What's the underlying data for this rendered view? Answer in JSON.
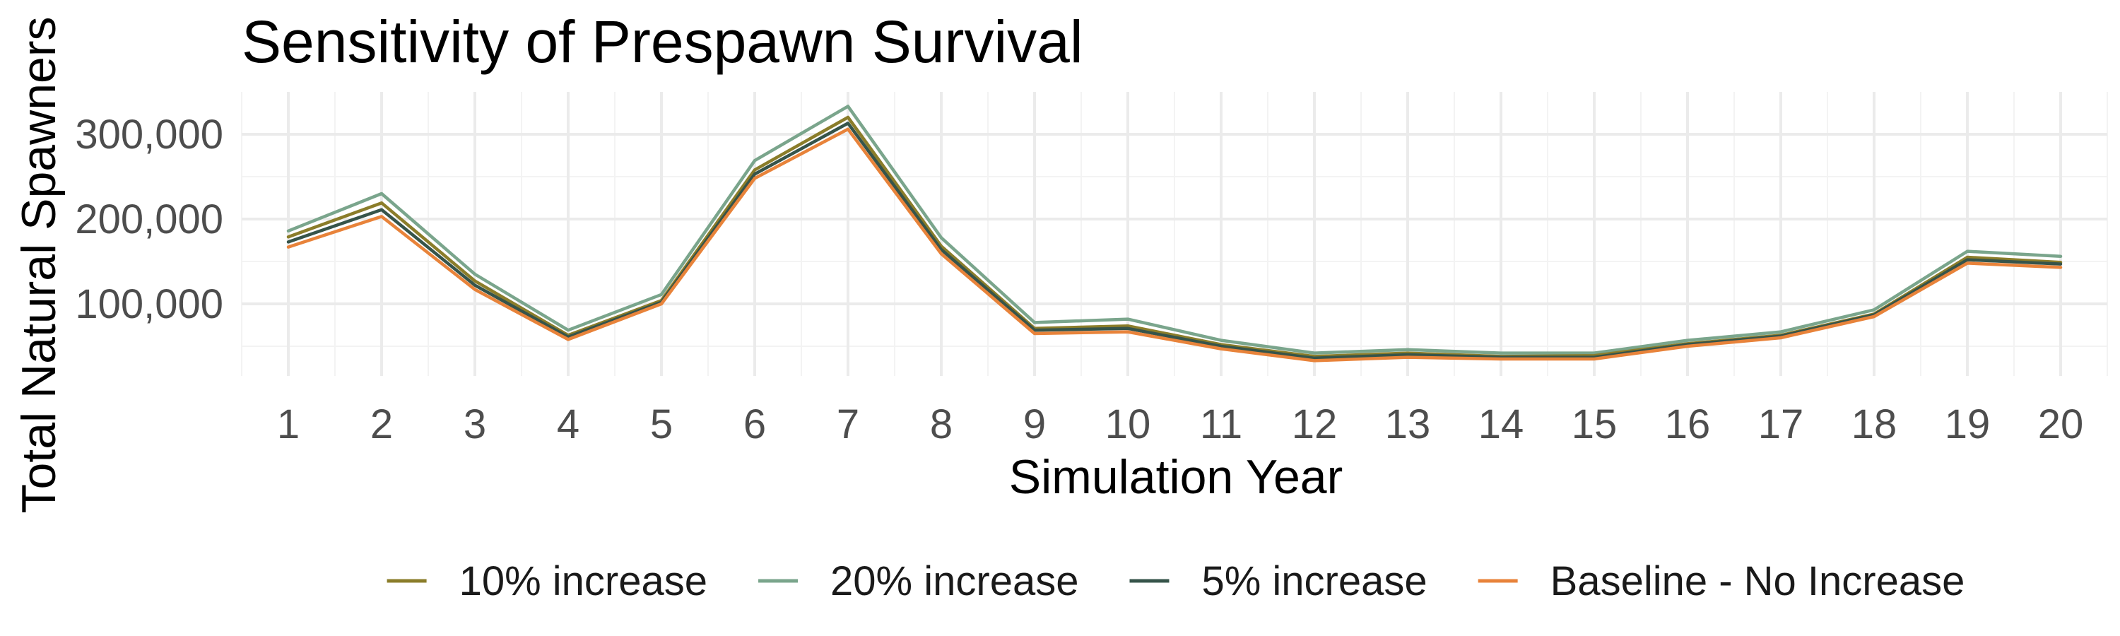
{
  "chart_data": {
    "type": "line",
    "title": "Sensitivity of Prespawn Survival",
    "xlabel": "Simulation Year",
    "ylabel": "Total Natural Spawners",
    "x": [
      1,
      2,
      3,
      4,
      5,
      6,
      7,
      8,
      9,
      10,
      11,
      12,
      13,
      14,
      15,
      16,
      17,
      18,
      19,
      20
    ],
    "xlim": [
      0.5,
      20.5
    ],
    "ylim": [
      15000,
      350000
    ],
    "yticks": [
      100000,
      200000,
      300000
    ],
    "ytick_labels": [
      "100,000",
      "200,000",
      "300,000"
    ],
    "grid": true,
    "legend_position": "bottom",
    "series": [
      {
        "name": "10% increase",
        "color": "#8B7D2A",
        "values": [
          179000,
          219000,
          127000,
          63000,
          104000,
          258000,
          320000,
          168000,
          71000,
          74000,
          52000,
          38000,
          42000,
          38000,
          39000,
          53000,
          63000,
          88000,
          155000,
          149000
        ]
      },
      {
        "name": "20% increase",
        "color": "#7AA58C",
        "values": [
          186000,
          230000,
          135000,
          69000,
          111000,
          269000,
          333000,
          178000,
          78000,
          82000,
          57000,
          42000,
          46000,
          42000,
          42000,
          57000,
          67000,
          93000,
          162000,
          156000
        ]
      },
      {
        "name": "5% increase",
        "color": "#36544A",
        "values": [
          173000,
          211000,
          122000,
          61000,
          102000,
          253000,
          313000,
          164000,
          69000,
          71000,
          50000,
          36000,
          40000,
          37000,
          37000,
          52000,
          62000,
          87000,
          152000,
          147000
        ]
      },
      {
        "name": "Baseline - No Increase",
        "color": "#E8833A",
        "values": [
          167000,
          203000,
          117000,
          58000,
          100000,
          248000,
          306000,
          159000,
          65000,
          67000,
          47000,
          33000,
          37000,
          35000,
          35000,
          50000,
          60000,
          85000,
          148000,
          143000
        ]
      }
    ]
  }
}
